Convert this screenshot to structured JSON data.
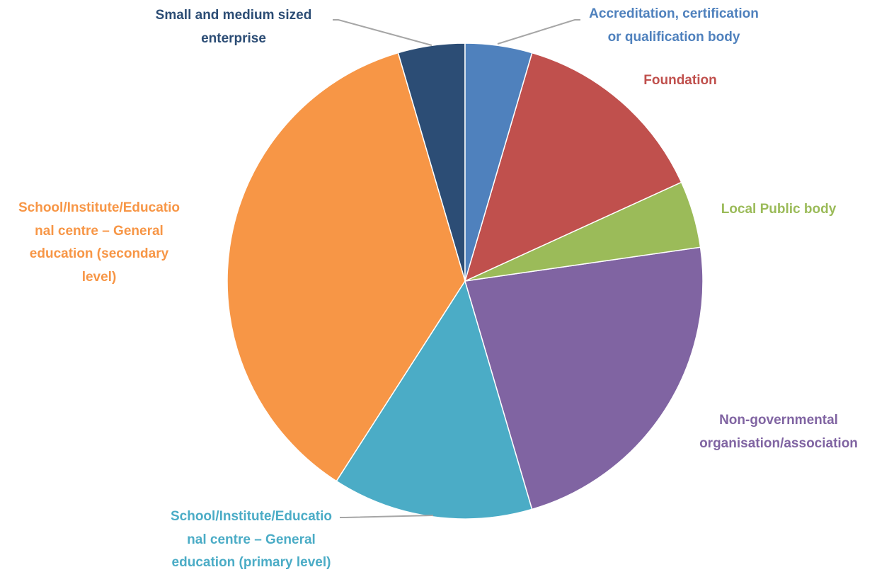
{
  "chart_data": {
    "type": "pie",
    "categories": [
      "Accreditation, certification\nor qualification body",
      "Foundation",
      "Local Public body",
      "Non-governmental\norganisation/association",
      "School/Institute/Educatio\nnal centre – General\neducation (primary level)",
      "School/Institute/Educatio\nnal centre – General\neducation (secondary\nlevel)",
      "Small and medium sized\nenterprise"
    ],
    "values": [
      1,
      3,
      1,
      5,
      3,
      8,
      1
    ],
    "colors": [
      "#4f81bd",
      "#c0504d",
      "#9bbb59",
      "#8064a2",
      "#4bacc6",
      "#f79646",
      "#2c4d75"
    ]
  }
}
